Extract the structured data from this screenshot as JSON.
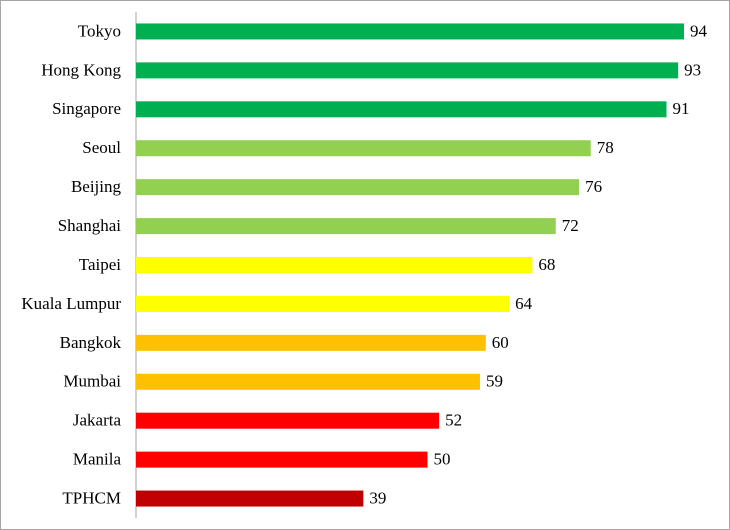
{
  "chart_data": {
    "type": "bar",
    "orientation": "horizontal",
    "categories": [
      "Tokyo",
      "Hong Kong",
      "Singapore",
      "Seoul",
      "Beijing",
      "Shanghai",
      "Taipei",
      "Kuala Lumpur",
      "Bangkok",
      "Mumbai",
      "Jakarta",
      "Manila",
      "TPHCM"
    ],
    "values": [
      94,
      93,
      91,
      78,
      76,
      72,
      68,
      64,
      60,
      59,
      52,
      50,
      39
    ],
    "colors": [
      "#00b050",
      "#00b050",
      "#00b050",
      "#92d050",
      "#92d050",
      "#92d050",
      "#ffff00",
      "#ffff00",
      "#ffc000",
      "#ffc000",
      "#ff0000",
      "#ff0000",
      "#c00000"
    ],
    "data_labels": true
  }
}
